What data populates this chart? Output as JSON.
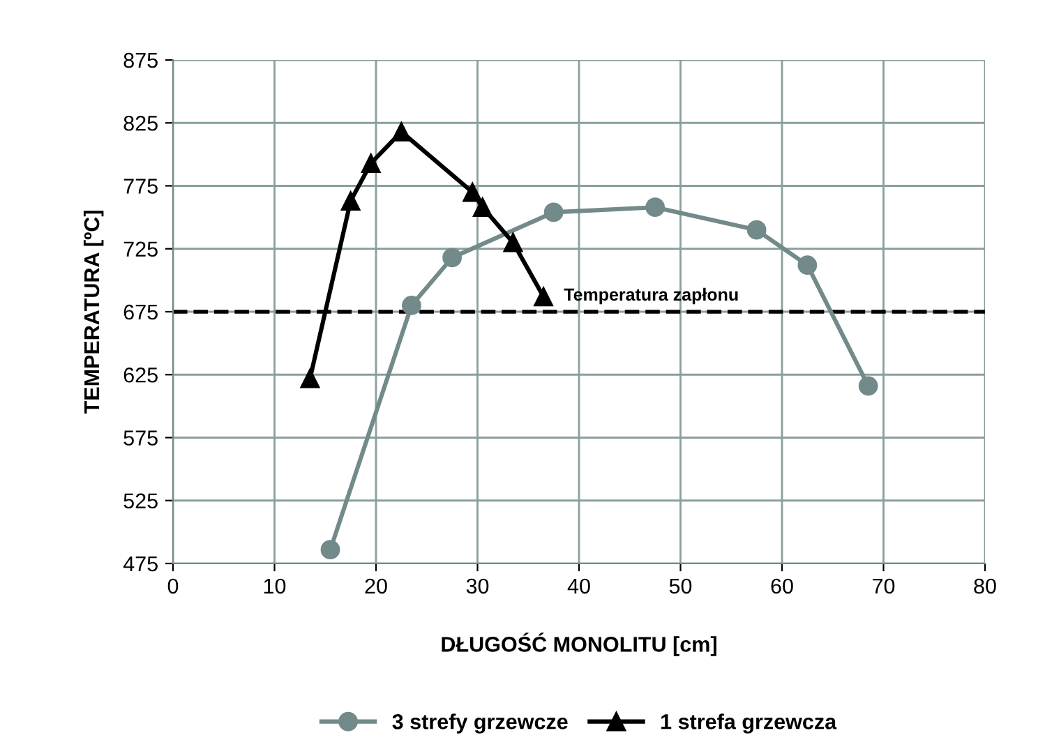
{
  "chart_data": {
    "type": "line",
    "xlabel": "DŁUGOŚĆ MONOLITU [cm]",
    "ylabel": "TEMPERATURA [ºC]",
    "xlim": [
      0,
      80
    ],
    "xticks": [
      0,
      10,
      20,
      30,
      40,
      50,
      60,
      70,
      80
    ],
    "ylim": [
      475,
      875
    ],
    "yticks": [
      475,
      525,
      575,
      625,
      675,
      725,
      775,
      825,
      875
    ],
    "grid": true,
    "legend": "bottom",
    "line_style": "solid",
    "series": [
      {
        "name": "3 strefy grzewcze",
        "color": "#738a8a",
        "marker": "circle",
        "x": [
          15.5,
          23.5,
          27.5,
          37.5,
          47.5,
          57.5,
          62.5,
          68.5
        ],
        "values": [
          486,
          680,
          718,
          754,
          758,
          740,
          712,
          616
        ]
      },
      {
        "name": "1 strefa grzewcza",
        "color": "#000000",
        "marker": "triangle",
        "x": [
          13.5,
          17.5,
          19.5,
          22.5,
          29.5,
          30.5,
          33.5,
          36.5
        ],
        "values": [
          622,
          763,
          793,
          818,
          770,
          758,
          730,
          687
        ]
      }
    ],
    "ref_lines": [
      {
        "axis": "y",
        "value": 675,
        "label": "Temperatura zapłonu",
        "color": "#000000",
        "line_style": "dashed"
      }
    ]
  }
}
